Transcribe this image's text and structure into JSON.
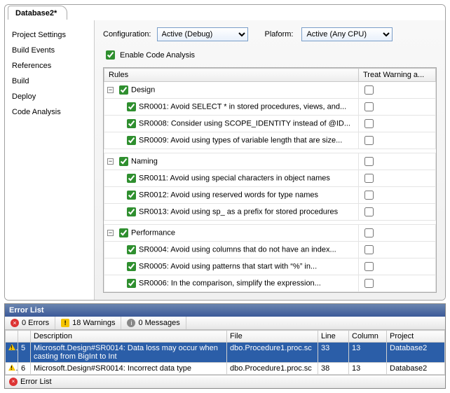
{
  "tab_title": "Database2*",
  "sidebar": {
    "items": [
      {
        "label": "Project Settings"
      },
      {
        "label": "Build Events"
      },
      {
        "label": "References"
      },
      {
        "label": "Build"
      },
      {
        "label": "Deploy"
      },
      {
        "label": "Code Analysis"
      }
    ]
  },
  "config": {
    "configuration_label": "Configuration:",
    "configuration_value": "Active (Debug)",
    "platform_label": "Plaform:",
    "platform_value": "Active (Any CPU)",
    "enable_label": "Enable Code Analysis"
  },
  "rules": {
    "col_rules": "Rules",
    "col_treat": "Treat Warning a...",
    "groups": [
      {
        "name": "Design",
        "items": [
          "SR0001: Avoid SELECT * in stored procedures, views, and...",
          "SR0008: Consider using SCOPE_IDENTITY instead of @ID...",
          "SR0009: Avoid using types of variable length that are size..."
        ]
      },
      {
        "name": "Naming",
        "items": [
          "SR0011: Avoid using special characters in object names",
          "SR0012: Avoid using reserved words for type names",
          "SR0013: Avoid using sp_ as a prefix for stored procedures"
        ]
      },
      {
        "name": "Performance",
        "items": [
          "SR0004: Avoid using columns that do not have an index...",
          "SR0005: Avoid using patterns that start with “%” in...",
          "SR0006: In the comparison, simplify the expression..."
        ]
      }
    ]
  },
  "errorlist": {
    "title": "Error List",
    "errors_label": "0 Errors",
    "warnings_label": "18 Warnings",
    "messages_label": "0 Messages",
    "cols": {
      "desc": "Description",
      "file": "File",
      "line": "Line",
      "col": "Column",
      "proj": "Project"
    },
    "rows": [
      {
        "n": "5",
        "desc": "Microsoft.Design#SR0014: Data loss may occur when casting from BigInt to Int",
        "file": "dbo.Procedure1.proc.sc",
        "line": "33",
        "col": "13",
        "proj": "Database2"
      },
      {
        "n": "6",
        "desc": "Microsoft.Design#SR0014: Incorrect data type",
        "file": "dbo.Procedure1.proc.sc",
        "line": "38",
        "col": "13",
        "proj": "Database2"
      }
    ],
    "bottom_tab": "Error List"
  }
}
